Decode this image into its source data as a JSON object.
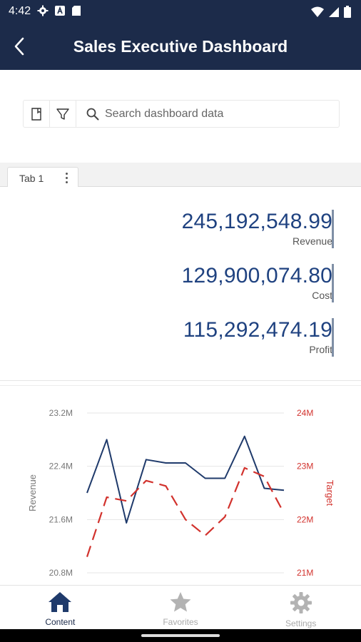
{
  "status": {
    "time": "4:42",
    "icons": [
      "gear-icon",
      "font-a-icon",
      "sd-card-icon",
      "wifi-icon",
      "signal-icon",
      "battery-icon"
    ]
  },
  "header": {
    "title": "Sales Executive Dashboard",
    "background": "#1c2b4a"
  },
  "toolbar": {
    "icons": [
      "bookmark-icon",
      "filter-icon",
      "search-icon"
    ],
    "search_placeholder": "Search dashboard data"
  },
  "tabs": [
    {
      "label": "Tab 1",
      "active": true
    }
  ],
  "kpis": [
    {
      "value": "245,192,548.99",
      "label": "Revenue"
    },
    {
      "value": "129,900,074.80",
      "label": "Cost"
    },
    {
      "value": "115,292,474.19",
      "label": "Profit"
    }
  ],
  "chart_data": {
    "type": "line",
    "x": [
      1,
      2,
      3,
      4,
      5,
      6,
      7,
      8,
      9,
      10,
      11
    ],
    "series": [
      {
        "name": "Revenue",
        "axis": "left",
        "color": "#1f3a6b",
        "style": "solid",
        "values": [
          22.0,
          22.8,
          21.55,
          22.5,
          22.45,
          22.45,
          22.22,
          22.22,
          22.85,
          22.07,
          22.04
        ]
      },
      {
        "name": "Target",
        "axis": "right",
        "color": "#d2322d",
        "style": "dashed",
        "values": [
          21.3,
          22.42,
          22.35,
          22.73,
          22.63,
          22.0,
          21.7,
          22.05,
          22.97,
          22.81,
          22.12
        ]
      }
    ],
    "ylabel": "Revenue",
    "ylabel_right": "Target",
    "yticks": [
      "23.2M",
      "22.4M",
      "21.6M",
      "20.8M"
    ],
    "yticks_right": [
      "24M",
      "23M",
      "22M",
      "21M"
    ],
    "ylim": [
      20.8,
      23.2
    ],
    "ylim_right": [
      21,
      24
    ],
    "grid": true,
    "left_axis_color": "#777777",
    "right_axis_color": "#d2322d"
  },
  "bottom_nav": [
    {
      "label": "Content",
      "icon": "home-icon",
      "active": true
    },
    {
      "label": "Favorites",
      "icon": "star-icon",
      "active": false
    },
    {
      "label": "Settings",
      "icon": "gear-icon",
      "active": false
    }
  ]
}
